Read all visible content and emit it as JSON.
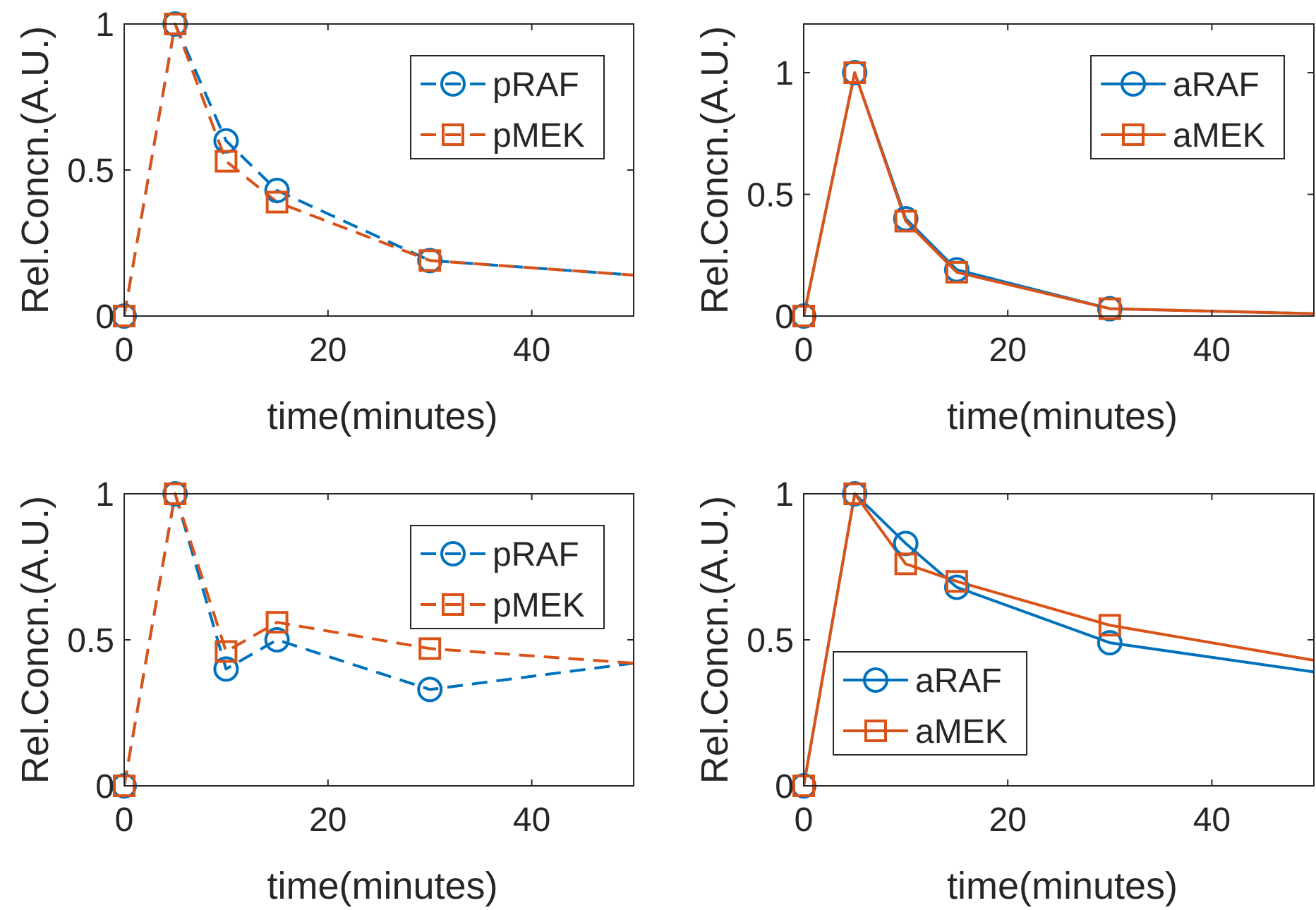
{
  "colors": {
    "blue": "#0072BD",
    "orange": "#D95319",
    "axis": "#262626",
    "background": "#ffffff"
  },
  "chart_data": [
    {
      "panel": "top-left",
      "type": "line",
      "line_style": "dashed",
      "xlabel": "time(minutes)",
      "ylabel": "Rel.Concn.(A.U.)",
      "xlim": [
        0,
        50
      ],
      "ylim": [
        0,
        1
      ],
      "xticks": [
        0,
        20,
        40
      ],
      "xtick_labels": [
        "0",
        "20",
        "40"
      ],
      "yticks": [
        0,
        0.5,
        1
      ],
      "ytick_labels": [
        "0",
        "0.5",
        "1"
      ],
      "grid": false,
      "legend_position": "top-right",
      "series": [
        {
          "name": "pRAF",
          "color": "#0072BD",
          "marker": "circle",
          "x": [
            0,
            5,
            10,
            15,
            30,
            50
          ],
          "y": [
            0,
            1,
            0.6,
            0.43,
            0.19,
            0.14
          ],
          "markers_at": [
            0,
            5,
            10,
            15,
            30
          ]
        },
        {
          "name": "pMEK",
          "color": "#D95319",
          "marker": "square",
          "x": [
            0,
            5,
            10,
            15,
            30,
            50
          ],
          "y": [
            0,
            1,
            0.53,
            0.39,
            0.19,
            0.14
          ],
          "markers_at": [
            0,
            5,
            10,
            15,
            30
          ]
        }
      ]
    },
    {
      "panel": "top-right",
      "type": "line",
      "line_style": "solid",
      "xlabel": "time(minutes)",
      "ylabel": "Rel.Concn.(A.U.)",
      "xlim": [
        0,
        50
      ],
      "ylim": [
        0,
        1.2
      ],
      "xticks": [
        0,
        20,
        40
      ],
      "xtick_labels": [
        "0",
        "20",
        "40"
      ],
      "yticks": [
        0,
        0.5,
        1
      ],
      "ytick_labels": [
        "0",
        "0.5",
        "1"
      ],
      "grid": false,
      "legend_position": "top-right",
      "series": [
        {
          "name": "aRAF",
          "color": "#0072BD",
          "marker": "circle",
          "x": [
            0,
            5,
            10,
            15,
            30,
            50
          ],
          "y": [
            0,
            1,
            0.4,
            0.19,
            0.03,
            0.01
          ],
          "markers_at": [
            0,
            5,
            10,
            15,
            30
          ]
        },
        {
          "name": "aMEK",
          "color": "#D95319",
          "marker": "square",
          "x": [
            0,
            5,
            10,
            15,
            30,
            50
          ],
          "y": [
            0,
            1,
            0.39,
            0.18,
            0.03,
            0.01
          ],
          "markers_at": [
            0,
            5,
            10,
            15,
            30
          ]
        }
      ]
    },
    {
      "panel": "bottom-left",
      "type": "line",
      "line_style": "dashed",
      "xlabel": "time(minutes)",
      "ylabel": "Rel.Concn.(A.U.)",
      "xlim": [
        0,
        50
      ],
      "ylim": [
        0,
        1
      ],
      "xticks": [
        0,
        20,
        40
      ],
      "xtick_labels": [
        "0",
        "20",
        "40"
      ],
      "yticks": [
        0,
        0.5,
        1
      ],
      "ytick_labels": [
        "0",
        "0.5",
        "1"
      ],
      "grid": false,
      "legend_position": "top-right",
      "series": [
        {
          "name": "pRAF",
          "color": "#0072BD",
          "marker": "circle",
          "x": [
            0,
            5,
            10,
            15,
            30,
            50
          ],
          "y": [
            0,
            1,
            0.4,
            0.5,
            0.33,
            0.42
          ],
          "markers_at": [
            0,
            5,
            10,
            15,
            30
          ]
        },
        {
          "name": "pMEK",
          "color": "#D95319",
          "marker": "square",
          "x": [
            0,
            5,
            10,
            15,
            30,
            50
          ],
          "y": [
            0,
            1,
            0.46,
            0.56,
            0.47,
            0.42
          ],
          "markers_at": [
            0,
            5,
            10,
            15,
            30
          ]
        }
      ]
    },
    {
      "panel": "bottom-right",
      "type": "line",
      "line_style": "solid",
      "xlabel": "time(minutes)",
      "ylabel": "Rel.Concn.(A.U.)",
      "xlim": [
        0,
        50
      ],
      "ylim": [
        0,
        1
      ],
      "xticks": [
        0,
        20,
        40
      ],
      "xtick_labels": [
        "0",
        "20",
        "40"
      ],
      "yticks": [
        0,
        0.5,
        1
      ],
      "ytick_labels": [
        "0",
        "0.5",
        "1"
      ],
      "grid": false,
      "legend_position": "bottom-left",
      "series": [
        {
          "name": "aRAF",
          "color": "#0072BD",
          "marker": "circle",
          "x": [
            0,
            5,
            10,
            15,
            30,
            50
          ],
          "y": [
            0,
            1,
            0.83,
            0.68,
            0.49,
            0.39
          ],
          "markers_at": [
            0,
            5,
            10,
            15,
            30
          ]
        },
        {
          "name": "aMEK",
          "color": "#D95319",
          "marker": "square",
          "x": [
            0,
            5,
            10,
            15,
            30,
            50
          ],
          "y": [
            0,
            1,
            0.76,
            0.7,
            0.55,
            0.43
          ],
          "markers_at": [
            0,
            5,
            10,
            15,
            30
          ]
        }
      ]
    }
  ]
}
